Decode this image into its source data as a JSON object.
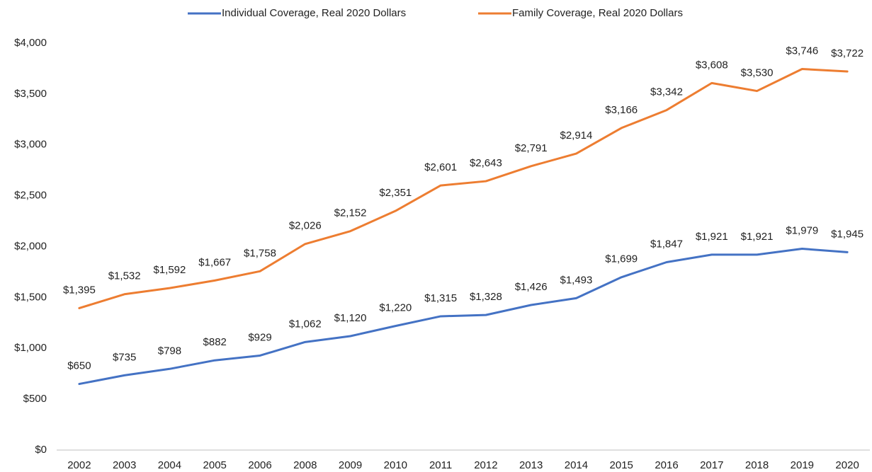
{
  "chart_data": {
    "type": "line",
    "categories": [
      "2002",
      "2003",
      "2004",
      "2005",
      "2006",
      "2008",
      "2009",
      "2010",
      "2011",
      "2012",
      "2013",
      "2014",
      "2015",
      "2016",
      "2017",
      "2018",
      "2019",
      "2020"
    ],
    "series": [
      {
        "name": "Individual Coverage, Real 2020 Dollars",
        "color": "#4472c4",
        "values": [
          650,
          735,
          798,
          882,
          929,
          1062,
          1120,
          1220,
          1315,
          1328,
          1426,
          1493,
          1699,
          1847,
          1921,
          1921,
          1979,
          1945
        ],
        "value_labels": [
          "$650",
          "$735",
          "$798",
          "$882",
          "$929",
          "$1,062",
          "$1,120",
          "$1,220",
          "$1,315",
          "$1,328",
          "$1,426",
          "$1,493",
          "$1,699",
          "$1,847",
          "$1,921",
          "$1,921",
          "$1,979",
          "$1,945"
        ]
      },
      {
        "name": "Family Coverage, Real 2020 Dollars",
        "color": "#ed7d31",
        "values": [
          1395,
          1532,
          1592,
          1667,
          1758,
          2026,
          2152,
          2351,
          2601,
          2643,
          2791,
          2914,
          3166,
          3342,
          3608,
          3530,
          3746,
          3722
        ],
        "value_labels": [
          "$1,395",
          "$1,532",
          "$1,592",
          "$1,667",
          "$1,758",
          "$2,026",
          "$2,152",
          "$2,351",
          "$2,601",
          "$2,643",
          "$2,791",
          "$2,914",
          "$3,166",
          "$3,342",
          "$3,608",
          "$3,530",
          "$3,746",
          "$3,722"
        ]
      }
    ],
    "ylim": [
      0,
      4000
    ],
    "yticks": [
      {
        "value": 0,
        "label": "$0"
      },
      {
        "value": 500,
        "label": "$500"
      },
      {
        "value": 1000,
        "label": "$1,000"
      },
      {
        "value": 1500,
        "label": "$1,500"
      },
      {
        "value": 2000,
        "label": "$2,000"
      },
      {
        "value": 2500,
        "label": "$2,500"
      },
      {
        "value": 3000,
        "label": "$3,000"
      },
      {
        "value": 3500,
        "label": "$3,500"
      },
      {
        "value": 4000,
        "label": "$4,000"
      }
    ],
    "grid": false,
    "legend": "top"
  }
}
